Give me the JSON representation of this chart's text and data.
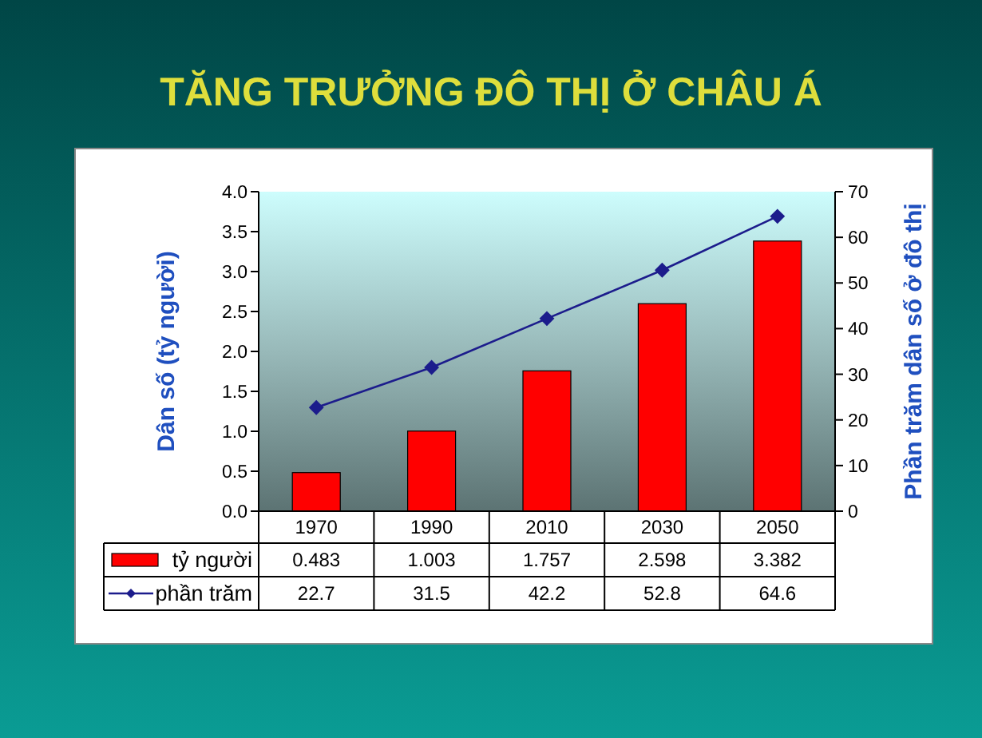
{
  "chart_data": {
    "type": "bar",
    "title": "TĂNG TRƯỞNG ĐÔ THỊ Ở CHÂU Á",
    "ylabel": "Dân số (tỷ người)",
    "y2label": "Phần trăm dân số ở đô thị",
    "categories": [
      "1970",
      "1990",
      "2010",
      "2030",
      "2050"
    ],
    "series": [
      {
        "name": "tỷ người",
        "color": "#ff0000",
        "values": [
          0.483,
          1.003,
          1.757,
          2.598,
          3.382
        ]
      },
      {
        "name": "phần trăm",
        "type": "line",
        "axis": "y2",
        "color": "#1c1c8c",
        "values": [
          22.7,
          31.5,
          42.2,
          52.8,
          64.6
        ]
      }
    ],
    "ylim": [
      0,
      4
    ],
    "yticks": [
      {
        "value": 0,
        "label": "0.0"
      },
      0.5,
      {
        "value": 1,
        "label": "1.0"
      },
      1.5,
      {
        "value": 2,
        "label": "2.0"
      },
      2.5,
      {
        "value": 3,
        "label": "3.0"
      },
      3.5,
      {
        "value": 4,
        "label": "4.0"
      }
    ],
    "y2lim": [
      0,
      70
    ],
    "y2ticks": [
      0,
      10,
      20,
      30,
      40,
      50,
      60,
      70
    ],
    "data_labels": true,
    "legend": "bottom left",
    "grid": false,
    "marker": "diamond"
  }
}
